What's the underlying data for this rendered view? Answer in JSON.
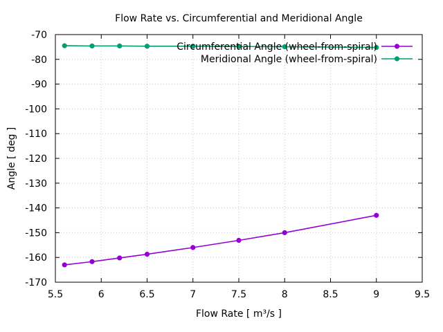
{
  "chart_data": {
    "type": "line",
    "title": "Flow Rate vs. Circumferential and Meridional Angle",
    "xlabel": "Flow Rate [ m³/s ]",
    "ylabel": "Angle [ deg ]",
    "xlim": [
      5.5,
      9.5
    ],
    "ylim": [
      -170,
      -70
    ],
    "xticks": [
      5.5,
      6,
      6.5,
      7,
      7.5,
      8,
      8.5,
      9,
      9.5
    ],
    "xtick_labels": [
      "5.5",
      "6",
      "6.5",
      "7",
      "7.5",
      "8",
      "8.5",
      "9",
      "9.5"
    ],
    "yticks": [
      -170,
      -160,
      -150,
      -140,
      -130,
      -120,
      -110,
      -100,
      -90,
      -80,
      -70
    ],
    "ytick_labels": [
      "-170",
      "-160",
      "-150",
      "-140",
      "-130",
      "-120",
      "-110",
      "-100",
      "-90",
      "-80",
      "-70"
    ],
    "grid": true,
    "legend_position": "top-right",
    "series": [
      {
        "name": "Circumferential Angle (wheel-from-spiral)",
        "color": "#9400d3",
        "x": [
          5.6,
          5.9,
          6.2,
          6.5,
          7.0,
          7.5,
          8.0,
          9.0
        ],
        "y": [
          -163.0,
          -161.7,
          -160.2,
          -158.7,
          -156.0,
          -153.1,
          -150.0,
          -143.0
        ]
      },
      {
        "name": "Meridional Angle (wheel-from-spiral)",
        "color": "#009e73",
        "x": [
          5.6,
          5.9,
          6.2,
          6.5,
          7.0,
          7.5,
          8.0,
          9.0
        ],
        "y": [
          -74.5,
          -74.6,
          -74.6,
          -74.7,
          -74.7,
          -74.8,
          -74.9,
          -75.2
        ]
      }
    ]
  }
}
